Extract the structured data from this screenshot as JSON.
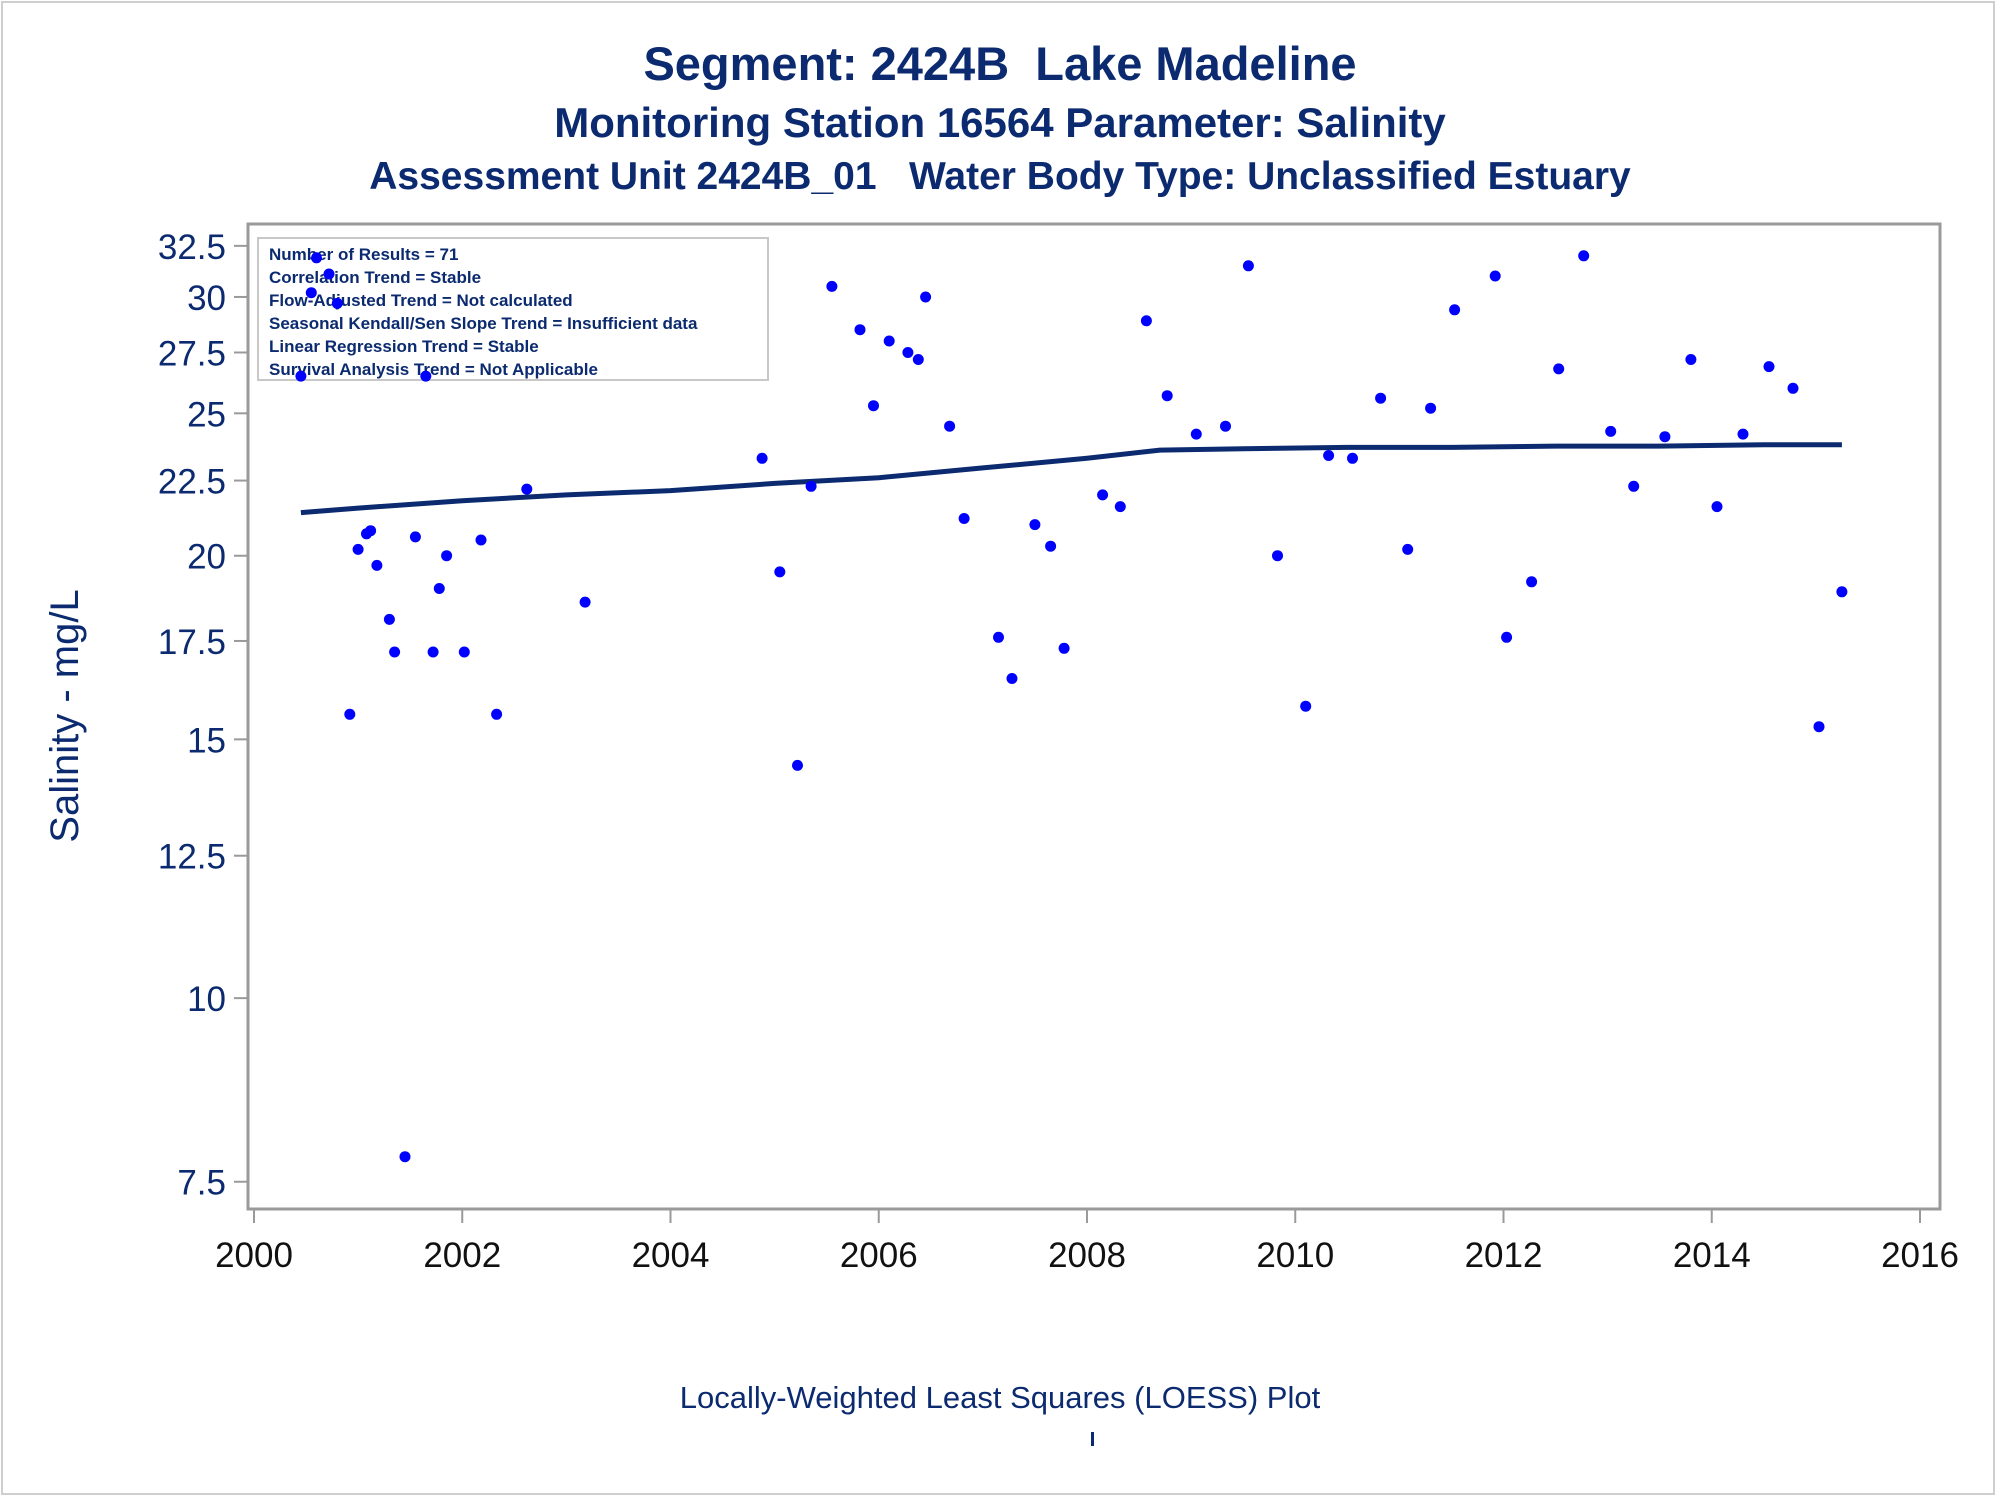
{
  "titles": {
    "line1": "Segment: 2424B  Lake Madeline",
    "line2": "Monitoring Station 16564 Parameter: Salinity",
    "line3": "Assessment Unit 2424B_01   Water Body Type: Unclassified Estuary"
  },
  "footnote": "Locally-Weighted Least Squares (LOESS) Plot",
  "colors": {
    "text": "#0b2a6f",
    "points": "#0000ff",
    "line": "#0b2a6f",
    "frame": "#9a9a9a"
  },
  "chart_data": {
    "type": "scatter",
    "xlabel": "",
    "ylabel": "Salinity - mg/L",
    "x_ticks": [
      "2000",
      "2002",
      "2004",
      "2006",
      "2008",
      "2010",
      "2012",
      "2014",
      "2016"
    ],
    "y_ticks": [
      "7.5",
      "10",
      "12.5",
      "15",
      "17.5",
      "20",
      "22.5",
      "25",
      "27.5",
      "30",
      "32.5"
    ],
    "xlim": [
      2000,
      2016
    ],
    "ylim": [
      7.3,
      32.8
    ],
    "y_scale": "log",
    "grid": false,
    "legend_box": {
      "placement": "top-left",
      "lines": [
        "Number of Results = 71",
        "Correlation Trend = Stable",
        "Flow-Adjusted Trend = Not calculated",
        "Seasonal Kendall/Sen Slope Trend = Insufficient data",
        "Linear Regression Trend = Stable",
        "Survival Analysis Trend = Not Applicable"
      ]
    },
    "series": [
      {
        "type": "scatter",
        "points": [
          [
            2000.45,
            26.5
          ],
          [
            2000.55,
            30.2
          ],
          [
            2000.6,
            31.9
          ],
          [
            2000.72,
            31.1
          ],
          [
            2000.8,
            29.7
          ],
          [
            2000.92,
            15.6
          ],
          [
            2001.0,
            20.2
          ],
          [
            2001.08,
            20.7
          ],
          [
            2001.12,
            20.8
          ],
          [
            2001.18,
            19.7
          ],
          [
            2001.3,
            18.1
          ],
          [
            2001.35,
            17.2
          ],
          [
            2001.45,
            7.8
          ],
          [
            2001.55,
            20.6
          ],
          [
            2001.65,
            26.5
          ],
          [
            2001.72,
            17.2
          ],
          [
            2001.78,
            19.0
          ],
          [
            2001.85,
            20.0
          ],
          [
            2002.02,
            17.2
          ],
          [
            2002.18,
            20.5
          ],
          [
            2002.33,
            15.6
          ],
          [
            2002.62,
            22.2
          ],
          [
            2003.18,
            18.6
          ],
          [
            2004.88,
            23.3
          ],
          [
            2005.05,
            19.5
          ],
          [
            2005.22,
            14.4
          ],
          [
            2005.35,
            22.3
          ],
          [
            2005.55,
            30.5
          ],
          [
            2005.82,
            28.5
          ],
          [
            2005.95,
            25.3
          ],
          [
            2006.1,
            28.0
          ],
          [
            2006.28,
            27.5
          ],
          [
            2006.38,
            27.2
          ],
          [
            2006.45,
            30.0
          ],
          [
            2006.68,
            24.5
          ],
          [
            2006.82,
            21.2
          ],
          [
            2007.15,
            17.6
          ],
          [
            2007.28,
            16.5
          ],
          [
            2007.5,
            21.0
          ],
          [
            2007.65,
            20.3
          ],
          [
            2007.78,
            17.3
          ],
          [
            2008.15,
            22.0
          ],
          [
            2008.32,
            21.6
          ],
          [
            2008.57,
            28.9
          ],
          [
            2008.77,
            25.7
          ],
          [
            2009.05,
            24.2
          ],
          [
            2009.33,
            24.5
          ],
          [
            2009.55,
            31.5
          ],
          [
            2009.83,
            20.0
          ],
          [
            2010.1,
            15.8
          ],
          [
            2010.32,
            23.4
          ],
          [
            2010.55,
            23.3
          ],
          [
            2010.82,
            25.6
          ],
          [
            2011.08,
            20.2
          ],
          [
            2011.3,
            25.2
          ],
          [
            2011.53,
            29.4
          ],
          [
            2011.92,
            31.0
          ],
          [
            2012.03,
            17.6
          ],
          [
            2012.27,
            19.2
          ],
          [
            2012.53,
            26.8
          ],
          [
            2012.77,
            32.0
          ],
          [
            2013.03,
            24.3
          ],
          [
            2013.25,
            22.3
          ],
          [
            2013.55,
            24.1
          ],
          [
            2013.8,
            27.2
          ],
          [
            2014.05,
            21.6
          ],
          [
            2014.3,
            24.2
          ],
          [
            2014.55,
            26.9
          ],
          [
            2014.78,
            26.0
          ],
          [
            2015.03,
            15.3
          ],
          [
            2015.25,
            18.9
          ]
        ]
      },
      {
        "type": "line",
        "name": "",
        "points": [
          [
            2000.45,
            21.4
          ],
          [
            2001.0,
            21.55
          ],
          [
            2002.0,
            21.8
          ],
          [
            2003.0,
            22.0
          ],
          [
            2004.0,
            22.15
          ],
          [
            2005.0,
            22.4
          ],
          [
            2006.0,
            22.6
          ],
          [
            2007.0,
            22.95
          ],
          [
            2008.0,
            23.3
          ],
          [
            2008.7,
            23.6
          ],
          [
            2009.5,
            23.65
          ],
          [
            2010.5,
            23.7
          ],
          [
            2011.5,
            23.7
          ],
          [
            2012.5,
            23.75
          ],
          [
            2013.5,
            23.75
          ],
          [
            2014.5,
            23.8
          ],
          [
            2015.25,
            23.8
          ]
        ]
      }
    ]
  }
}
